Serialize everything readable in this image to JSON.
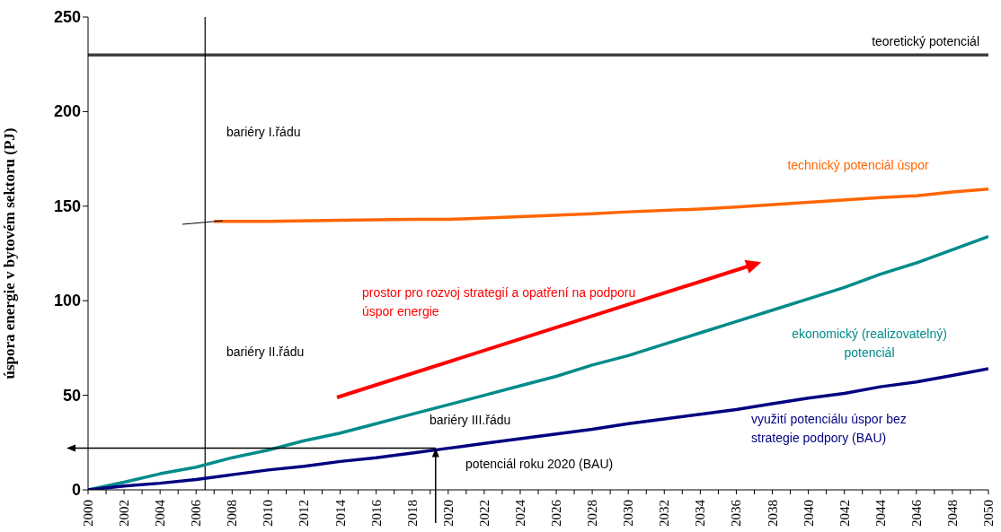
{
  "chart_data": {
    "type": "line",
    "ylabel": "úspora energie v bytovém sektoru (PJ)",
    "xlim": [
      2000,
      2050
    ],
    "ylim": [
      0,
      250
    ],
    "yticks": [
      0,
      50,
      100,
      150,
      200,
      250
    ],
    "xticks": [
      2000,
      {
        "value": 2001,
        "label": null
      },
      2002,
      {
        "value": 2003,
        "label": null
      },
      2004,
      {
        "value": 2005,
        "label": null
      },
      2006,
      {
        "value": 2007,
        "label": null
      },
      2008,
      {
        "value": 2009,
        "label": null
      },
      2010,
      {
        "value": 2011,
        "label": null
      },
      2012,
      {
        "value": 2013,
        "label": null
      },
      2014,
      {
        "value": 2015,
        "label": null
      },
      2016,
      {
        "value": 2017,
        "label": null
      },
      2018,
      {
        "value": 2019,
        "label": null
      },
      2020,
      {
        "value": 2021,
        "label": null
      },
      2022,
      {
        "value": 2023,
        "label": null
      },
      2024,
      {
        "value": 2025,
        "label": null
      },
      2026,
      {
        "value": 2027,
        "label": null
      },
      2028,
      {
        "value": 2029,
        "label": null
      },
      2030,
      {
        "value": 2031,
        "label": null
      },
      2032,
      {
        "value": 2033,
        "label": null
      },
      2034,
      {
        "value": 2035,
        "label": null
      },
      2036,
      {
        "value": 2037,
        "label": null
      },
      2038,
      {
        "value": 2039,
        "label": null
      },
      2040,
      {
        "value": 2041,
        "label": null
      },
      2042,
      {
        "value": 2043,
        "label": null
      },
      2044,
      {
        "value": 2045,
        "label": null
      },
      2046,
      {
        "value": 2047,
        "label": null
      },
      2048,
      {
        "value": 2049,
        "label": null
      },
      2050
    ],
    "marker": "none",
    "line_style": "solid",
    "series": [
      {
        "name": "technický potenciál úspor",
        "color": "#ff6600",
        "x": [
          2007,
          2010,
          2014,
          2018,
          2020,
          2024,
          2028,
          2030,
          2034,
          2036,
          2040,
          2044,
          2046,
          2048,
          2050
        ],
        "values": [
          142,
          142,
          142.5,
          143,
          143,
          144.5,
          146,
          147,
          148.5,
          149.5,
          152,
          154.5,
          155.5,
          157.5,
          159
        ]
      },
      {
        "name": "ekonomický (realizovatelný) potenciál",
        "color": "#008b8b",
        "x": [
          2000,
          2002,
          2004,
          2006,
          2008,
          2010,
          2012,
          2014,
          2016,
          2018,
          2020,
          2022,
          2024,
          2026,
          2028,
          2030,
          2032,
          2034,
          2036,
          2038,
          2040,
          2042,
          2044,
          2046,
          2048,
          2050
        ],
        "values": [
          0,
          4,
          8.5,
          12,
          17,
          21,
          26,
          30,
          35,
          40,
          45,
          50,
          55,
          60,
          66,
          71,
          77,
          83,
          89,
          95,
          101,
          107,
          114,
          120,
          127,
          134
        ]
      },
      {
        "name": "využití potenciálu úspor bez strategie podpory (BAU)",
        "color": "#000080",
        "x": [
          2000,
          2002,
          2004,
          2006,
          2008,
          2010,
          2012,
          2014,
          2016,
          2018,
          2020,
          2022,
          2024,
          2026,
          2028,
          2030,
          2032,
          2034,
          2036,
          2038,
          2040,
          2042,
          2044,
          2046,
          2048,
          2050
        ],
        "values": [
          0,
          2,
          3.5,
          5.5,
          8,
          10.5,
          12.5,
          15,
          17,
          19.5,
          22,
          24.5,
          27,
          29.5,
          32,
          35,
          37.5,
          40,
          42.5,
          45.5,
          48.5,
          51,
          54.5,
          57,
          60.5,
          64
        ]
      }
    ],
    "ref_lines": [
      {
        "axis": "y",
        "value": 230,
        "label": "teoretický potenciál",
        "color": "#404040"
      },
      {
        "axis": "x",
        "value": 2006.5,
        "color": "#000000"
      }
    ],
    "annotations": [
      "bariéry I.řádu",
      "bariéry II.řádu",
      "bariéry III.řádu",
      "prostor pro rozvoj strategií a opatření na podporu úspor energie",
      "potenciál roku 2020 (BAU)"
    ]
  }
}
